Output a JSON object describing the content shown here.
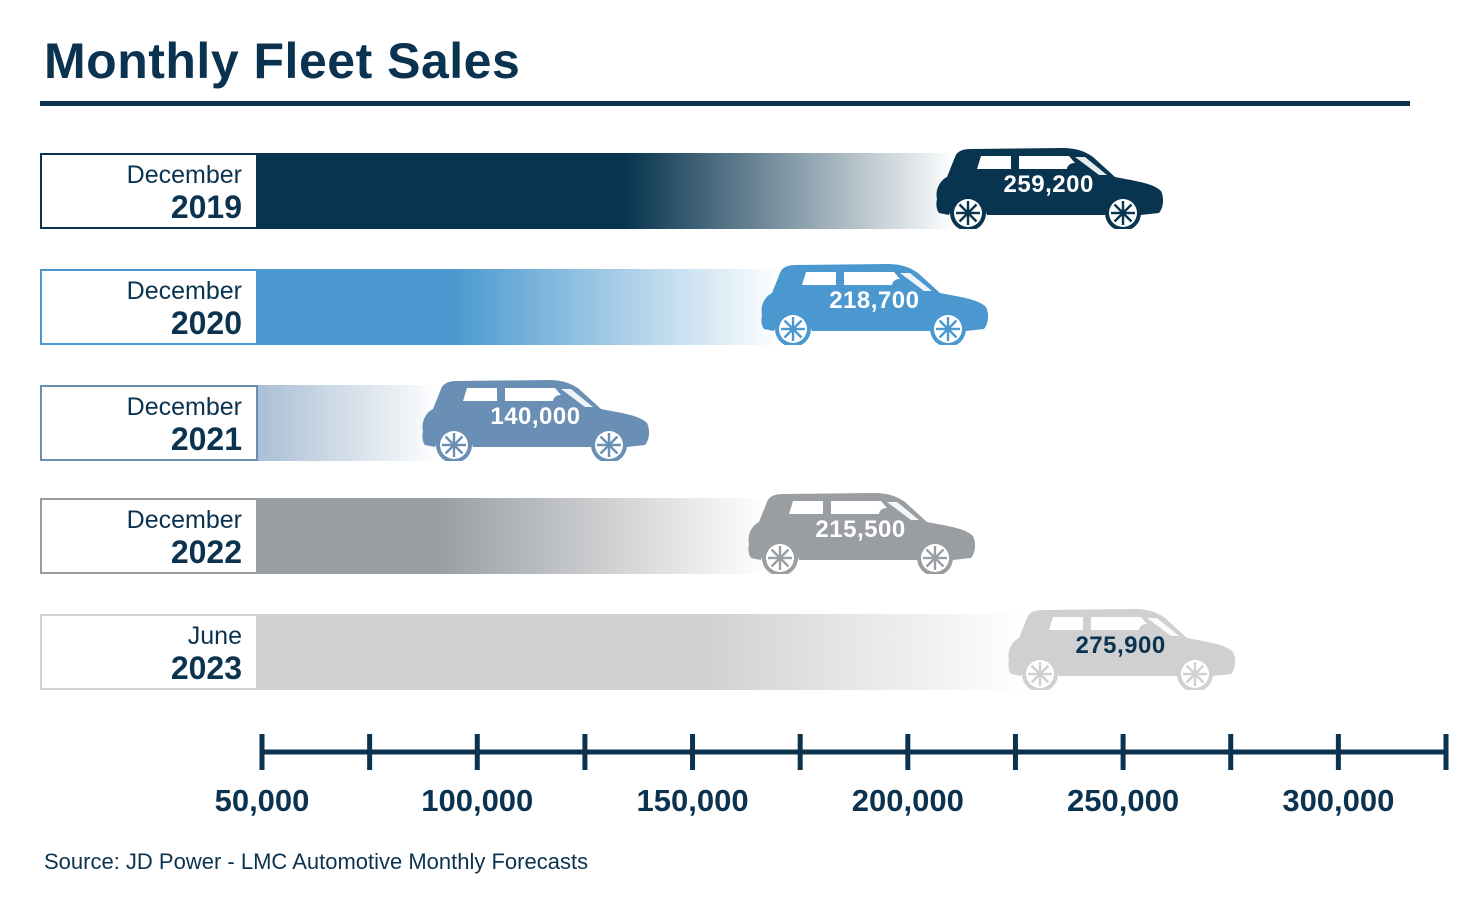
{
  "chart_data": {
    "type": "bar",
    "title": "Monthly Fleet Sales",
    "categories": [
      {
        "month": "December",
        "year": "2019"
      },
      {
        "month": "December",
        "year": "2020"
      },
      {
        "month": "December",
        "year": "2021"
      },
      {
        "month": "December",
        "year": "2022"
      },
      {
        "month": "June",
        "year": "2023"
      }
    ],
    "values": [
      259200,
      218700,
      140000,
      215500,
      275900
    ],
    "value_labels": [
      "259,200",
      "218,700",
      "140,000",
      "215,500",
      "275,900"
    ],
    "colors": [
      "#08344f",
      "#4a98cf",
      "#6a8fb5",
      "#9a9ea2",
      "#cfd0d2"
    ],
    "value_text_colors": [
      "#ffffff",
      "#ffffff",
      "#ffffff",
      "#ffffff",
      "#0b3350"
    ],
    "xlim": [
      50000,
      325000
    ],
    "tick_step": 25000,
    "tick_labels": [
      {
        "value": 50000,
        "label": "50,000"
      },
      {
        "value": 100000,
        "label": "100,000"
      },
      {
        "value": 150000,
        "label": "150,000"
      },
      {
        "value": 200000,
        "label": "200,000"
      },
      {
        "value": 250000,
        "label": "250,000"
      },
      {
        "value": 300000,
        "label": "300,000"
      }
    ],
    "xlabel": "",
    "ylabel": ""
  },
  "source": "Source:  JD Power - LMC Automotive Monthly Forecasts",
  "axis_color": "#0b3350"
}
